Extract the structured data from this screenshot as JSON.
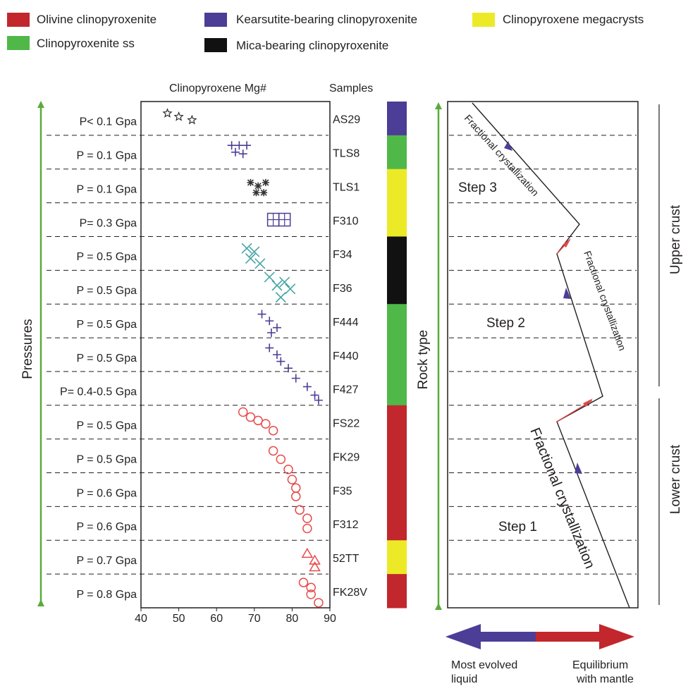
{
  "legend": [
    {
      "label": "Olivine clinopyroxenite",
      "color": "#c1272d"
    },
    {
      "label": "Kearsutite-bearing clinopyroxenite",
      "color": "#4c3d96"
    },
    {
      "label": "Clinopyroxene megacrysts",
      "color": "#ecea27"
    },
    {
      "label": "Clinopyroxenite ss",
      "color": "#4fb849"
    },
    {
      "label": "Mica-bearing clinopyroxenite",
      "color": "#111111"
    }
  ],
  "headers": {
    "mg": "Clinopyroxene  Mg#",
    "samples": "Samples"
  },
  "axis_labels": {
    "pressures": "Pressures",
    "rock_type": "Rock type"
  },
  "pressures": [
    "P< 0.1 Gpa",
    "P = 0.1 Gpa",
    "P = 0.1 Gpa",
    "P= 0.3 Gpa",
    "P = 0.5 Gpa",
    "P = 0.5 Gpa",
    "P = 0.5 Gpa",
    "P = 0.5 Gpa",
    "P= 0.4-0.5 Gpa",
    "P = 0.5 Gpa",
    "P = 0.5 Gpa",
    "P = 0.6 Gpa",
    "P = 0.6 Gpa",
    "P = 0.7 Gpa",
    "P = 0.8 Gpa"
  ],
  "samples": [
    "AS29",
    "TLS8",
    "TLS1",
    "F310",
    "F34",
    "F36",
    "F444",
    "F440",
    "F427",
    "FS22",
    "FK29",
    "F35",
    "F312",
    "52TT",
    "FK28V"
  ],
  "rock_bar": [
    {
      "color": "#4c3d96",
      "from": 0,
      "to": 1
    },
    {
      "color": "#4fb849",
      "from": 1,
      "to": 2
    },
    {
      "color": "#ecea27",
      "from": 2,
      "to": 4
    },
    {
      "color": "#111111",
      "from": 4,
      "to": 6
    },
    {
      "color": "#4fb849",
      "from": 6,
      "to": 9
    },
    {
      "color": "#c1272d",
      "from": 9,
      "to": 13
    },
    {
      "color": "#ecea27",
      "from": 13,
      "to": 14
    },
    {
      "color": "#c1272d",
      "from": 14,
      "to": 15
    }
  ],
  "right_panel": {
    "steps": [
      "Step 3",
      "Step 2",
      "Step 1"
    ],
    "fc_labels": [
      "Fractional crystallization",
      "Fractional crystallization",
      "Fractional crystallization"
    ],
    "crust": [
      "Upper crust",
      "Lower crust"
    ],
    "arrow_left": "Most evolved liquid",
    "arrow_right": "Equilibrium with mantle",
    "arrow_left_color": "#4c3d96",
    "arrow_right_color": "#c1272d"
  },
  "chart_data": {
    "type": "scatter",
    "title": "",
    "xlabel": "Clinopyroxene  Mg#",
    "ylabel": "Samples",
    "xlim": [
      40,
      90
    ],
    "xticks": [
      40,
      50,
      60,
      70,
      80,
      90
    ],
    "grid": "horizontal dashed separators between samples",
    "series": [
      {
        "sample": "AS29",
        "marker": "star",
        "color": "#231f20",
        "points": [
          [
            47,
            0.35
          ],
          [
            50,
            0.45
          ],
          [
            53.5,
            0.55
          ]
        ]
      },
      {
        "sample": "TLS8",
        "marker": "plus",
        "color": "#4c3d96",
        "points": [
          [
            64,
            0.3
          ],
          [
            66,
            0.3
          ],
          [
            68,
            0.3
          ],
          [
            65,
            0.5
          ],
          [
            67,
            0.55
          ]
        ]
      },
      {
        "sample": "TLS1",
        "marker": "asterisk",
        "color": "#333333",
        "points": [
          [
            69,
            0.4
          ],
          [
            71,
            0.5
          ],
          [
            73,
            0.4
          ],
          [
            70.5,
            0.7
          ],
          [
            72.5,
            0.7
          ]
        ]
      },
      {
        "sample": "F310",
        "marker": "square",
        "color": "#4c3d96",
        "points": [
          [
            75,
            0.5
          ],
          [
            78,
            0.5
          ]
        ]
      },
      {
        "sample": "F34",
        "marker": "x",
        "color": "#4aa5a5",
        "points": [
          [
            68,
            0.35
          ],
          [
            70,
            0.45
          ],
          [
            69,
            0.65
          ],
          [
            71.5,
            0.8
          ]
        ]
      },
      {
        "sample": "F36",
        "marker": "x",
        "color": "#4aa5a5",
        "points": [
          [
            74,
            0.2
          ],
          [
            76,
            0.45
          ],
          [
            78,
            0.35
          ],
          [
            79.5,
            0.55
          ],
          [
            77,
            0.8
          ]
        ]
      },
      {
        "sample": "F444",
        "marker": "plus",
        "color": "#4c3d96",
        "points": [
          [
            72,
            0.3
          ],
          [
            74,
            0.5
          ],
          [
            76,
            0.7
          ],
          [
            74.5,
            0.85
          ]
        ]
      },
      {
        "sample": "F440",
        "marker": "plus",
        "color": "#4c3d96",
        "points": [
          [
            74,
            0.3
          ],
          [
            76,
            0.5
          ],
          [
            77,
            0.7
          ],
          [
            79,
            0.9
          ]
        ]
      },
      {
        "sample": "F427",
        "marker": "plus",
        "color": "#4c3d96",
        "points": [
          [
            81,
            0.2
          ],
          [
            84,
            0.45
          ],
          [
            86,
            0.7
          ],
          [
            87,
            0.85
          ]
        ]
      },
      {
        "sample": "FS22",
        "marker": "circle",
        "color": "#e84a4a",
        "points": [
          [
            67,
            0.2
          ],
          [
            69,
            0.35
          ],
          [
            71,
            0.45
          ],
          [
            73,
            0.55
          ],
          [
            75,
            0.75
          ]
        ]
      },
      {
        "sample": "FK29",
        "marker": "circle",
        "color": "#e84a4a",
        "points": [
          [
            75,
            0.35
          ],
          [
            77,
            0.6
          ],
          [
            79,
            0.9
          ]
        ]
      },
      {
        "sample": "F35",
        "marker": "circle",
        "color": "#e84a4a",
        "points": [
          [
            80,
            0.2
          ],
          [
            81,
            0.45
          ],
          [
            81,
            0.7
          ]
        ]
      },
      {
        "sample": "F312",
        "marker": "circle",
        "color": "#e84a4a",
        "points": [
          [
            82,
            0.1
          ],
          [
            84,
            0.35
          ],
          [
            84,
            0.65
          ]
        ]
      },
      {
        "sample": "52TT",
        "marker": "triangle",
        "color": "#e84a4a",
        "points": [
          [
            84,
            0.4
          ],
          [
            86,
            0.6
          ],
          [
            86,
            0.8
          ]
        ]
      },
      {
        "sample": "FK28V",
        "marker": "circle",
        "color": "#e84a4a",
        "points": [
          [
            83,
            0.25
          ],
          [
            85,
            0.4
          ],
          [
            85,
            0.6
          ],
          [
            87,
            0.85
          ]
        ]
      }
    ]
  }
}
